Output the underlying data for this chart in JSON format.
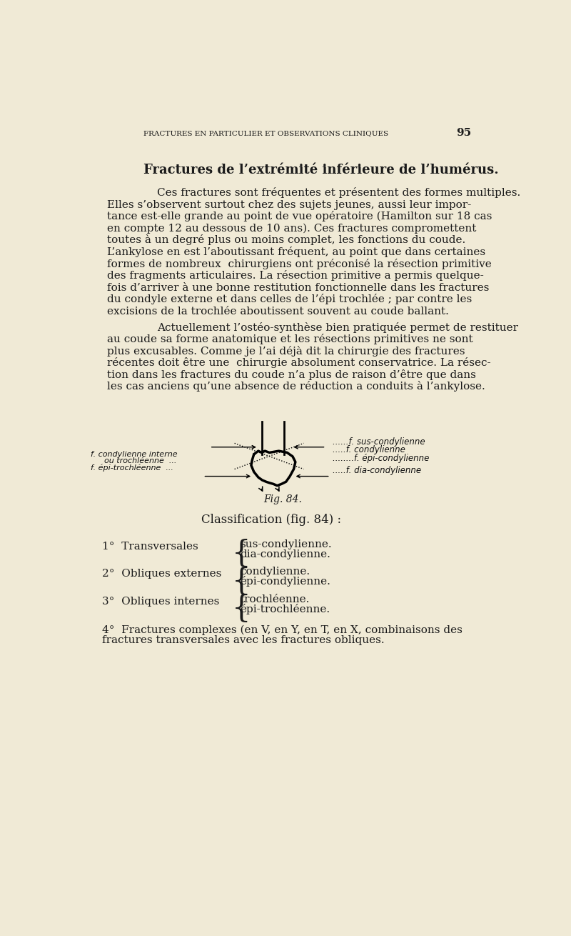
{
  "bg_color": "#f0ead6",
  "header_text": "FRACTURES EN PARTICULIER ET OBSERVATIONS CLINIQUES",
  "page_number": "95",
  "title": "Fractures de l’extrémité inférieure de l’humérus.",
  "para1_lines": [
    "Ces fractures sont fréquentes et présentent des formes multiples.",
    "Elles s’observent surtout chez des sujets jeunes, aussi leur impor-",
    "tance est-elle grande au point de vue opératoire (Hamilton sur 18 cas",
    "en compte 12 au dessous de 10 ans). Ces fractures compromettent",
    "toutes à un degré plus ou moins complet, les fonctions du coude.",
    "L’ankylose en est l’aboutissant fréquent, au point que dans certaines",
    "formes de nombreux  chirurgiens ont préconisé la résection primitive",
    "des fragments articulaires. La résection primitive a permis quelque-",
    "fois d’arriver à une bonne restitution fonctionnelle dans les fractures",
    "du condyle externe et dans celles de l’épi trochlée ; par contre les",
    "excisions de la trochlée aboutissent souvent au coude ballant."
  ],
  "para2_lines": [
    "Actuellement l’ostéo-synthèse bien pratiquée permet de restituer",
    "au coude sa forme anatomique et les résections primitives ne sont",
    "plus excusables. Comme je l’ai déjà dit la chirurgie des fractures",
    "récentes doit être une  chirurgie absolument conservatrice. La résec-",
    "tion dans les fractures du coude n’a plus de raison d’être que dans",
    "les cas anciens qu’une absence de réduction a conduits à l’ankylose."
  ],
  "fig_caption": "Fig. 84.",
  "classification_title": "Classification (fig. 84) :",
  "class_items": [
    {
      "num": "1°",
      "label": "Transversales",
      "items": [
        "sus-condylienne.",
        "dia-condylienne."
      ]
    },
    {
      "num": "2°",
      "label": "Obliques externes",
      "items": [
        "condylienne.",
        "épi-condylienne."
      ]
    },
    {
      "num": "3°",
      "label": "Obliques internes",
      "items": [
        "trochléenne.",
        "épi-trochléenne."
      ]
    }
  ],
  "class_item4_line1": "4°  Fractures complexes (en V, en Y, en T, en X, combinaisons des",
  "class_item4_line2": "fractures transversales avec les fractures obliques."
}
